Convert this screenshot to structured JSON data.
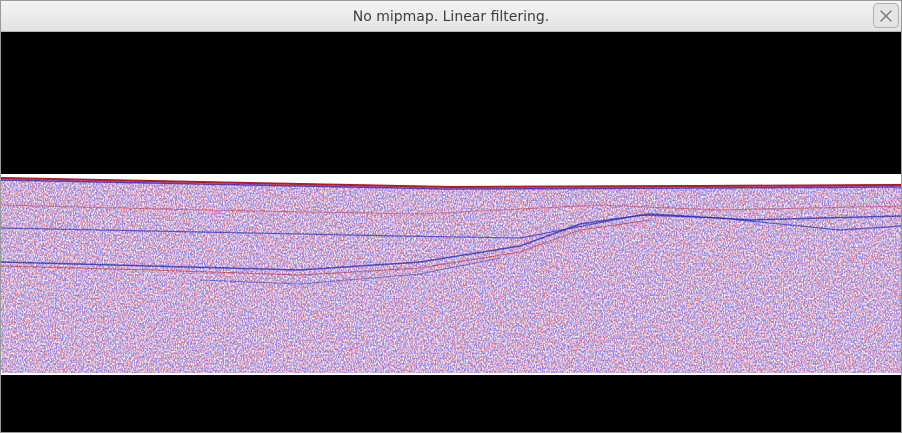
{
  "window": {
    "title": "No mipmap. Linear filtering."
  }
}
